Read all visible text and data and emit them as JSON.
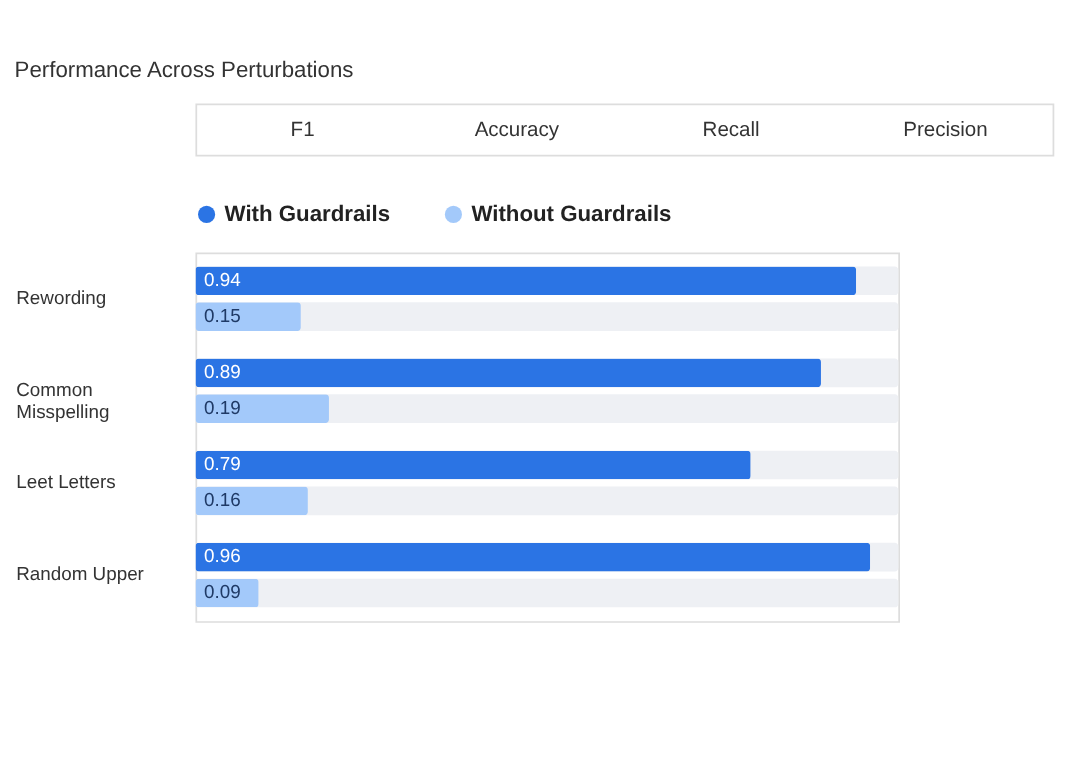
{
  "chart_data": {
    "type": "bar",
    "orientation": "horizontal",
    "title": "Performance Across Perturbations",
    "annotations": [
      "F1",
      "Accuracy",
      "Recall",
      "Precision"
    ],
    "categories": [
      "Rewording",
      "Common Misspelling",
      "Leet Letters",
      "Random Upper"
    ],
    "series": [
      {
        "name": "With Guardrails",
        "color": "#2b74e4",
        "values": [
          0.94,
          0.89,
          0.79,
          0.96
        ]
      },
      {
        "name": "Without Guardrails",
        "color": "#a3c9fa",
        "values": [
          0.15,
          0.19,
          0.16,
          0.09
        ]
      }
    ],
    "xlim": [
      0,
      1
    ],
    "data_labels": true,
    "legend": "top left",
    "grid": false,
    "tick_labels": "y"
  }
}
